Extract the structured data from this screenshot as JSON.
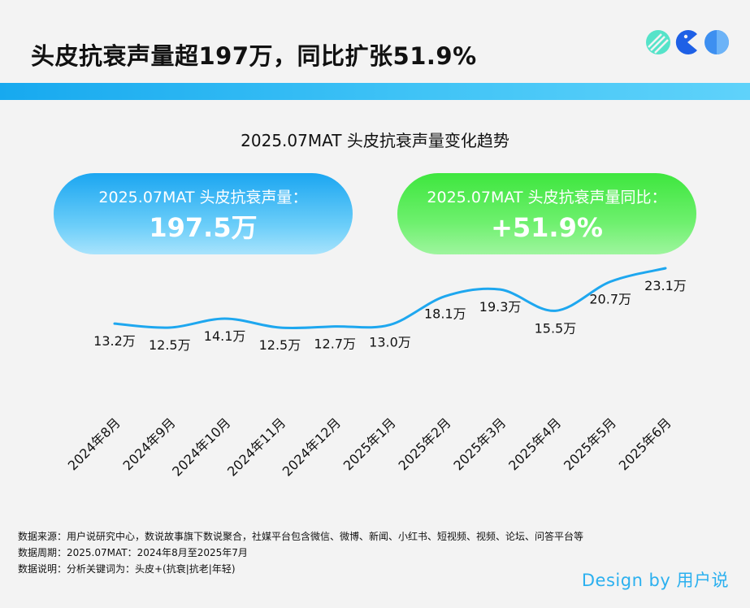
{
  "header": {
    "title": "头皮抗衰声量超197万，同比扩张51.9%"
  },
  "kpis": {
    "volume_label": "2025.07MAT 头皮抗衰声量：",
    "volume_value": "197.5万",
    "growth_label": "2025.07MAT 头皮抗衰声量同比：",
    "growth_value": "+51.9%"
  },
  "chart_data": {
    "type": "line",
    "title": "2025.07MAT 头皮抗衰声量变化趋势",
    "categories": [
      "2024年8月",
      "2024年9月",
      "2024年10月",
      "2024年11月",
      "2024年12月",
      "2025年1月",
      "2025年2月",
      "2025年3月",
      "2025年4月",
      "2025年5月",
      "2025年6月"
    ],
    "values": [
      13.2,
      12.5,
      14.1,
      12.5,
      12.7,
      13.0,
      18.1,
      19.3,
      15.5,
      20.7,
      23.1
    ],
    "labels": [
      "13.2万",
      "12.5万",
      "14.1万",
      "12.5万",
      "12.7万",
      "13.0万",
      "18.1万",
      "19.3万",
      "15.5万",
      "20.7万",
      "23.1万"
    ],
    "unit": "万",
    "line_color": "#1ea7ef",
    "grid": false,
    "legend": "none"
  },
  "footer": {
    "source": "数据来源：用户说研究中心，数说故事旗下数说聚合，社媒平台包含微信、微博、新闻、小红书、短视频、视频、论坛、问答平台等",
    "period": "数据周期：2025.07MAT：2024年8月至2025年7月",
    "note": "数据说明：分析关键词为：头皮+(抗衰|抗老|年轻)"
  },
  "credit": "Design by 用户说",
  "colors": {
    "band": "#17a9ef",
    "kpi_blue": "#1ba6f1",
    "kpi_green": "#3ee63e",
    "credit": "#2bb0ef"
  },
  "icons": [
    "logo-leaf-icon",
    "logo-pacman-icon",
    "logo-dotted-circle-icon"
  ]
}
